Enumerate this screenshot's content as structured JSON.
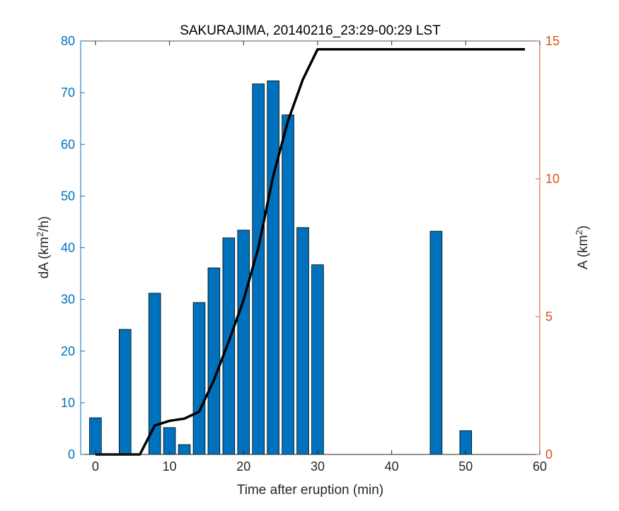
{
  "chart_data": {
    "type": "bar+line",
    "title": "SAKURAJIMA, 20140216_23:29-00:29 LST",
    "xlabel": "Time after eruption (min)",
    "ylabel_left": "dA (km²/h)",
    "ylabel_left_parts": {
      "base": "dA (km",
      "sup": "2",
      "rest": "/h)"
    },
    "ylabel_right": "A (km²)",
    "ylabel_right_parts": {
      "base": "A (km",
      "sup": "2",
      "rest": ")"
    },
    "xlim": [
      -2,
      60
    ],
    "ylim_left": [
      0,
      80
    ],
    "ylim_right": [
      0,
      15
    ],
    "xticks": [
      0,
      10,
      20,
      30,
      40,
      50,
      60
    ],
    "yticks_left": [
      0,
      10,
      20,
      30,
      40,
      50,
      60,
      70,
      80
    ],
    "yticks_right": [
      0,
      5,
      10,
      15
    ],
    "colors": {
      "bar": "#0072BD",
      "left_axis": "#0072BD",
      "right_axis": "#D95319",
      "line": "#000000"
    },
    "bars": {
      "name": "dA",
      "axis": "left",
      "bar_width": 1.6,
      "x": [
        0,
        4,
        8,
        10,
        12,
        14,
        16,
        18,
        20,
        22,
        24,
        26,
        28,
        30,
        46,
        50
      ],
      "values": [
        7.1,
        24.2,
        31.2,
        5.2,
        1.9,
        29.4,
        36.1,
        41.9,
        43.4,
        71.7,
        72.3,
        65.7,
        43.9,
        36.7,
        43.2,
        4.6
      ]
    },
    "line": {
      "name": "A",
      "axis": "right",
      "x": [
        0,
        2,
        4,
        6,
        8,
        10,
        12,
        14,
        16,
        18,
        20,
        22,
        24,
        26,
        28,
        30,
        32,
        36,
        40,
        44,
        48,
        52,
        56,
        58
      ],
      "values": [
        0,
        0,
        0,
        0,
        1.05,
        1.22,
        1.3,
        1.55,
        2.7,
        4.1,
        5.6,
        7.5,
        10.1,
        12.1,
        13.6,
        14.7,
        14.7,
        14.7,
        14.7,
        14.7,
        14.7,
        14.7,
        14.7,
        14.7
      ]
    }
  }
}
